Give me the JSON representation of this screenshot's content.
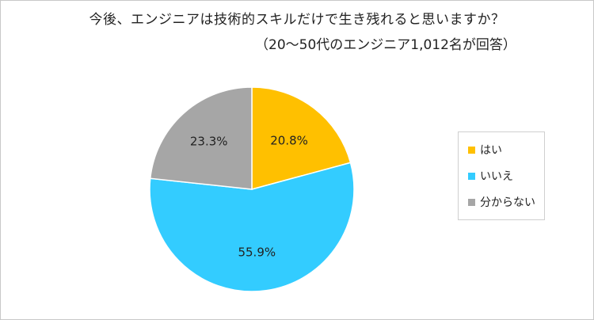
{
  "chart_data": {
    "type": "pie",
    "title": "今後、エンジニアは技術的スキルだけで生き残れると思いますか？",
    "subtitle": "（20～50代のエンジニア1,012名が回答）",
    "slices": [
      {
        "label": "はい",
        "value": 20.8,
        "display": "20.8%",
        "color": "#FFC000"
      },
      {
        "label": "いいえ",
        "value": 55.9,
        "display": "55.9%",
        "color": "#33CCFF"
      },
      {
        "label": "分からない",
        "value": 23.3,
        "display": "23.3%",
        "color": "#A6A6A6"
      }
    ],
    "legend_position": "right"
  }
}
